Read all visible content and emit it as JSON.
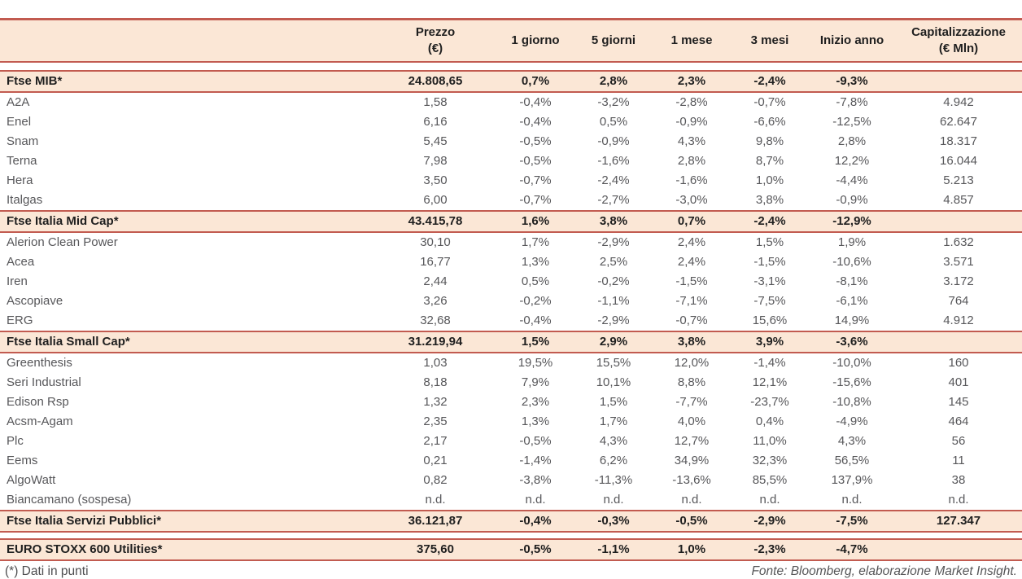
{
  "colors": {
    "border_red": "#C25B50",
    "band_peach": "#FBE7D6",
    "text_dark": "#1F1F1F",
    "text_gray": "#57575A"
  },
  "chart_data": {
    "type": "table",
    "columns": [
      {
        "line1": "",
        "line2": ""
      },
      {
        "line1": "Prezzo",
        "line2": "(€)"
      },
      {
        "line1": "1 giorno",
        "line2": ""
      },
      {
        "line1": "5 giorni",
        "line2": ""
      },
      {
        "line1": "1 mese",
        "line2": ""
      },
      {
        "line1": "3 mesi",
        "line2": ""
      },
      {
        "line1": "Inizio anno",
        "line2": ""
      },
      {
        "line1": "Capitalizzazione",
        "line2": "(€ Mln)"
      }
    ],
    "rows": [
      {
        "type": "index",
        "name": "Ftse MIB*",
        "values": [
          "24.808,65",
          "0,7%",
          "2,8%",
          "2,3%",
          "-2,4%",
          "-9,3%",
          ""
        ]
      },
      {
        "type": "stock",
        "name": "A2A",
        "values": [
          "1,58",
          "-0,4%",
          "-3,2%",
          "-2,8%",
          "-0,7%",
          "-7,8%",
          "4.942"
        ]
      },
      {
        "type": "stock",
        "name": "Enel",
        "values": [
          "6,16",
          "-0,4%",
          "0,5%",
          "-0,9%",
          "-6,6%",
          "-12,5%",
          "62.647"
        ]
      },
      {
        "type": "stock",
        "name": "Snam",
        "values": [
          "5,45",
          "-0,5%",
          "-0,9%",
          "4,3%",
          "9,8%",
          "2,8%",
          "18.317"
        ]
      },
      {
        "type": "stock",
        "name": "Terna",
        "values": [
          "7,98",
          "-0,5%",
          "-1,6%",
          "2,8%",
          "8,7%",
          "12,2%",
          "16.044"
        ]
      },
      {
        "type": "stock",
        "name": "Hera",
        "values": [
          "3,50",
          "-0,7%",
          "-2,4%",
          "-1,6%",
          "1,0%",
          "-4,4%",
          "5.213"
        ]
      },
      {
        "type": "stock",
        "name": "Italgas",
        "values": [
          "6,00",
          "-0,7%",
          "-2,7%",
          "-3,0%",
          "3,8%",
          "-0,9%",
          "4.857"
        ]
      },
      {
        "type": "index",
        "name": "Ftse Italia Mid Cap*",
        "values": [
          "43.415,78",
          "1,6%",
          "3,8%",
          "0,7%",
          "-2,4%",
          "-12,9%",
          ""
        ]
      },
      {
        "type": "stock",
        "name": "Alerion Clean Power",
        "values": [
          "30,10",
          "1,7%",
          "-2,9%",
          "2,4%",
          "1,5%",
          "1,9%",
          "1.632"
        ]
      },
      {
        "type": "stock",
        "name": "Acea",
        "values": [
          "16,77",
          "1,3%",
          "2,5%",
          "2,4%",
          "-1,5%",
          "-10,6%",
          "3.571"
        ]
      },
      {
        "type": "stock",
        "name": "Iren",
        "values": [
          "2,44",
          "0,5%",
          "-0,2%",
          "-1,5%",
          "-3,1%",
          "-8,1%",
          "3.172"
        ]
      },
      {
        "type": "stock",
        "name": "Ascopiave",
        "values": [
          "3,26",
          "-0,2%",
          "-1,1%",
          "-7,1%",
          "-7,5%",
          "-6,1%",
          "764"
        ]
      },
      {
        "type": "stock",
        "name": "ERG",
        "values": [
          "32,68",
          "-0,4%",
          "-2,9%",
          "-0,7%",
          "15,6%",
          "14,9%",
          "4.912"
        ]
      },
      {
        "type": "index",
        "name": "Ftse Italia Small Cap*",
        "values": [
          "31.219,94",
          "1,5%",
          "2,9%",
          "3,8%",
          "3,9%",
          "-3,6%",
          ""
        ]
      },
      {
        "type": "stock",
        "name": "Greenthesis",
        "values": [
          "1,03",
          "19,5%",
          "15,5%",
          "12,0%",
          "-1,4%",
          "-10,0%",
          "160"
        ]
      },
      {
        "type": "stock",
        "name": "Seri Industrial",
        "values": [
          "8,18",
          "7,9%",
          "10,1%",
          "8,8%",
          "12,1%",
          "-15,6%",
          "401"
        ]
      },
      {
        "type": "stock",
        "name": "Edison Rsp",
        "values": [
          "1,32",
          "2,3%",
          "1,5%",
          "-7,7%",
          "-23,7%",
          "-10,8%",
          "145"
        ]
      },
      {
        "type": "stock",
        "name": "Acsm-Agam",
        "values": [
          "2,35",
          "1,3%",
          "1,7%",
          "4,0%",
          "0,4%",
          "-4,9%",
          "464"
        ]
      },
      {
        "type": "stock",
        "name": "Plc",
        "values": [
          "2,17",
          "-0,5%",
          "4,3%",
          "12,7%",
          "11,0%",
          "4,3%",
          "56"
        ]
      },
      {
        "type": "stock",
        "name": "Eems",
        "values": [
          "0,21",
          "-1,4%",
          "6,2%",
          "34,9%",
          "32,3%",
          "56,5%",
          "11"
        ]
      },
      {
        "type": "stock",
        "name": "AlgoWatt",
        "values": [
          "0,82",
          "-3,8%",
          "-11,3%",
          "-13,6%",
          "85,5%",
          "137,9%",
          "38"
        ]
      },
      {
        "type": "stock",
        "name": "Biancamano (sospesa)",
        "values": [
          "n.d.",
          "n.d.",
          "n.d.",
          "n.d.",
          "n.d.",
          "n.d.",
          "n.d."
        ]
      },
      {
        "type": "index",
        "name": "Ftse Italia Servizi Pubblici*",
        "values": [
          "36.121,87",
          "-0,4%",
          "-0,3%",
          "-0,5%",
          "-2,9%",
          "-7,5%",
          "127.347"
        ]
      },
      {
        "type": "gap"
      },
      {
        "type": "index",
        "name": "EURO STOXX 600 Utilities*",
        "values": [
          "375,60",
          "-0,5%",
          "-1,1%",
          "1,0%",
          "-2,3%",
          "-4,7%",
          ""
        ]
      }
    ]
  },
  "footer": {
    "note": "(*) Dati in punti",
    "source": "Fonte: Bloomberg, elaborazione Market Insight."
  }
}
